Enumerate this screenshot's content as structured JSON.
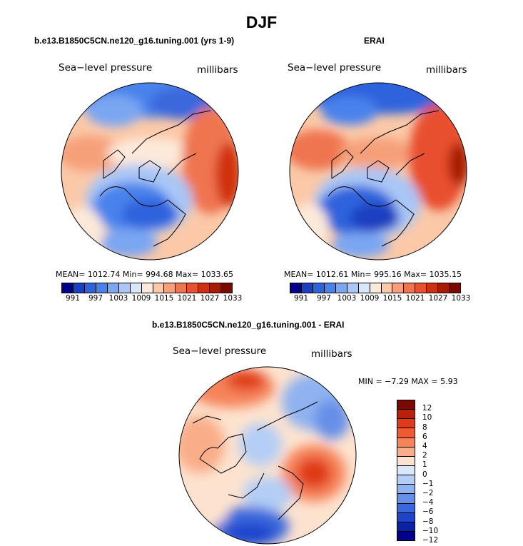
{
  "title": "DJF",
  "panels": {
    "model": {
      "title": "b.e13.B1850C5CN.ne120_g16.tuning.001 (yrs 1-9)",
      "variable": "Sea−level pressure",
      "units": "millibars",
      "stats": "MEAN= 1012.74   Min= 994.68   Max= 1033.65"
    },
    "obs": {
      "title": "ERAI",
      "variable": "Sea−level pressure",
      "units": "millibars",
      "stats": "MEAN= 1012.61   Min= 995.16   Max= 1035.15"
    },
    "diff": {
      "title": "b.e13.B1850C5CN.ne120_g16.tuning.001 - ERAI",
      "variable": "Sea−level pressure",
      "units": "millibars",
      "stats": "MIN =   −7.29  MAX =    5.93"
    }
  },
  "slp_colorbar": {
    "colors": [
      "#00008b",
      "#1a3fc1",
      "#2f63dd",
      "#4a82ec",
      "#7aa6f2",
      "#a9c6f6",
      "#d9e7fb",
      "#fde9da",
      "#fbc9a8",
      "#f6a07a",
      "#ef7550",
      "#e8502f",
      "#d0300f",
      "#a81c06",
      "#7a0a00"
    ],
    "labels": [
      "991",
      "997",
      "1003",
      "1009",
      "1015",
      "1021",
      "1027",
      "1033"
    ]
  },
  "diff_colorbar": {
    "colors": [
      "#7a0a00",
      "#b8200a",
      "#e03a18",
      "#f05a32",
      "#f6835a",
      "#f9ad88",
      "#fde3cf",
      "#d9e9fb",
      "#b4cef6",
      "#8fb2f0",
      "#6690e8",
      "#3a68dc",
      "#1f44cc",
      "#0a22a8",
      "#00008b"
    ],
    "labels": [
      "12",
      "10",
      "8",
      "6",
      "4",
      "2",
      "1",
      "0",
      "−1",
      "−2",
      "−4",
      "−6",
      "−8",
      "−10",
      "−12"
    ]
  }
}
